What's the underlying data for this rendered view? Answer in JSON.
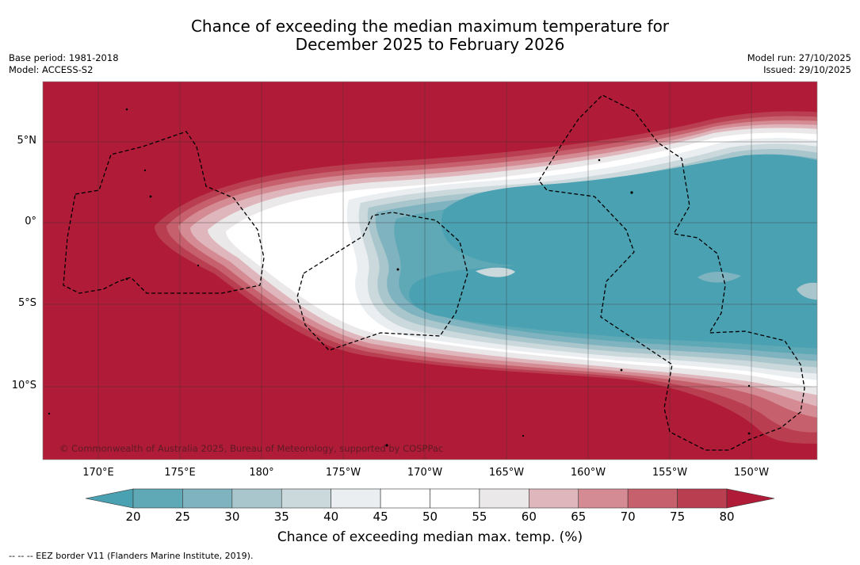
{
  "title_line1": "Chance of exceeding the median maximum temperature for",
  "title_line2": "December 2025 to February 2026",
  "base_period": "Base period: 1981-2018",
  "model": "Model: ACCESS-S2",
  "model_run": "Model run: 27/10/2025",
  "issued": "Issued: 29/10/2025",
  "copyright": "© Commonwealth of Australia 2025, Bureau of Meteorology, supported by COSPPac",
  "lon_labels": [
    "170°E",
    "175°E",
    "180°",
    "175°W",
    "170°W",
    "165°W",
    "160°W",
    "155°W",
    "150°W"
  ],
  "lat_labels": [
    "5°N",
    "0°",
    "5°S",
    "10°S"
  ],
  "colorbar": {
    "title": "Chance of exceeding median max. temp. (%)",
    "ticks": [
      "20",
      "25",
      "30",
      "35",
      "40",
      "45",
      "50",
      "55",
      "60",
      "65",
      "70",
      "75",
      "80"
    ],
    "colors": [
      "#5fa8b5",
      "#80b3c0",
      "#a8c6cb",
      "#cbd8dc",
      "#eaeef0",
      "#ffffff",
      "#ffffff",
      "#ebe8e9",
      "#dfb6bc",
      "#d48b93",
      "#c6606c",
      "#b93f50"
    ],
    "under_color": "#4aa1b2",
    "over_color": "#b01c37"
  },
  "footnote": "--  --  -- EEZ border V11 (Flanders Marine Institute, 2019).",
  "colors": {
    "hot": "#b01c37",
    "cool": "#4aa1b2"
  }
}
